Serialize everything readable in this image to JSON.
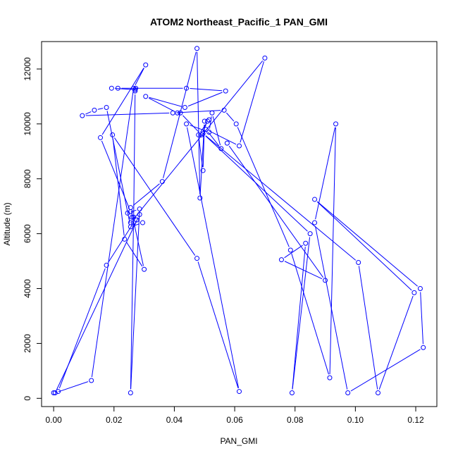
{
  "chart_data": {
    "type": "line",
    "title": "ATOM2 Northeast_Pacific_1 PAN_GMI",
    "xlabel": "PAN_GMI",
    "ylabel": "Altitude (m)",
    "xlim": [
      -0.004,
      0.127
    ],
    "ylim": [
      -300,
      13000
    ],
    "x_ticks": [
      {
        "value": 0.0,
        "label": "0.00"
      },
      {
        "value": 0.02,
        "label": "0.02"
      },
      {
        "value": 0.04,
        "label": "0.04"
      },
      {
        "value": 0.06,
        "label": "0.06"
      },
      {
        "value": 0.08,
        "label": "0.08"
      },
      {
        "value": 0.1,
        "label": "0.10"
      },
      {
        "value": 0.12,
        "label": "0.12"
      }
    ],
    "y_ticks": [
      {
        "value": 0,
        "label": "0"
      },
      {
        "value": 2000,
        "label": "2000"
      },
      {
        "value": 4000,
        "label": "4000"
      },
      {
        "value": 6000,
        "label": "6000"
      },
      {
        "value": 8000,
        "label": "8000"
      },
      {
        "value": 10000,
        "label": "10000"
      },
      {
        "value": 12000,
        "label": "12000"
      }
    ],
    "grid": false,
    "legend": "none",
    "color": "#0000ff",
    "series": [
      {
        "x": [
          0.0,
          0.0015,
          0.0175,
          0.0265,
          0.027,
          0.0272,
          0.027,
          0.0192,
          0.0213,
          0.044,
          0.057,
          0.0435,
          0.0305,
          0.041,
          0.042,
          0.049,
          0.051,
          0.0515,
          0.048,
          0.0495,
          0.05,
          0.0485,
          0.0475,
          0.036,
          0.0255,
          0.03,
          0.0235,
          0.0195,
          0.0475,
          0.0615,
          0.044,
          0.0515,
          0.0525,
          0.0555,
          0.0505,
          0.0615,
          0.07,
          0.0255,
          0.0245,
          0.0285,
          0.0255,
          0.0265,
          0.0285,
          0.0005,
          0.0125,
          0.0265,
          0.0305,
          0.0155,
          0.0255,
          0.026,
          0.0275,
          0.0295,
          0.0255,
          0.0175,
          0.0135,
          0.0095,
          0.0395,
          0.0565,
          0.0605,
          0.0785,
          0.0915,
          0.0935,
          0.0865,
          0.0975,
          0.1225,
          0.1215,
          0.0865,
          0.1195,
          0.1075,
          0.101,
          0.0495,
          0.085,
          0.079,
          0.0835,
          0.0755,
          0.09,
          0.0575
        ],
        "y": [
          200,
          250,
          4850,
          6400,
          11200,
          11300,
          11250,
          11300,
          11300,
          11300,
          11200,
          10600,
          11000,
          10400,
          10400,
          9600,
          10100,
          10150,
          9600,
          8300,
          10100,
          7300,
          12750,
          7900,
          6950,
          4700,
          5800,
          9600,
          5100,
          250,
          10000,
          9700,
          10400,
          9100,
          9800,
          9200,
          12400,
          6400,
          6750,
          6900,
          200,
          6600,
          6700,
          200,
          650,
          11300,
          12150,
          9500,
          6800,
          6600,
          6500,
          6400,
          6250,
          10600,
          10500,
          10300,
          10400,
          10500,
          10000,
          5400,
          750,
          10000,
          6400,
          200,
          1850,
          4000,
          7250,
          3850,
          200,
          4950,
          9650,
          6000,
          200,
          5650,
          5050,
          4300,
          9300
        ]
      }
    ]
  }
}
